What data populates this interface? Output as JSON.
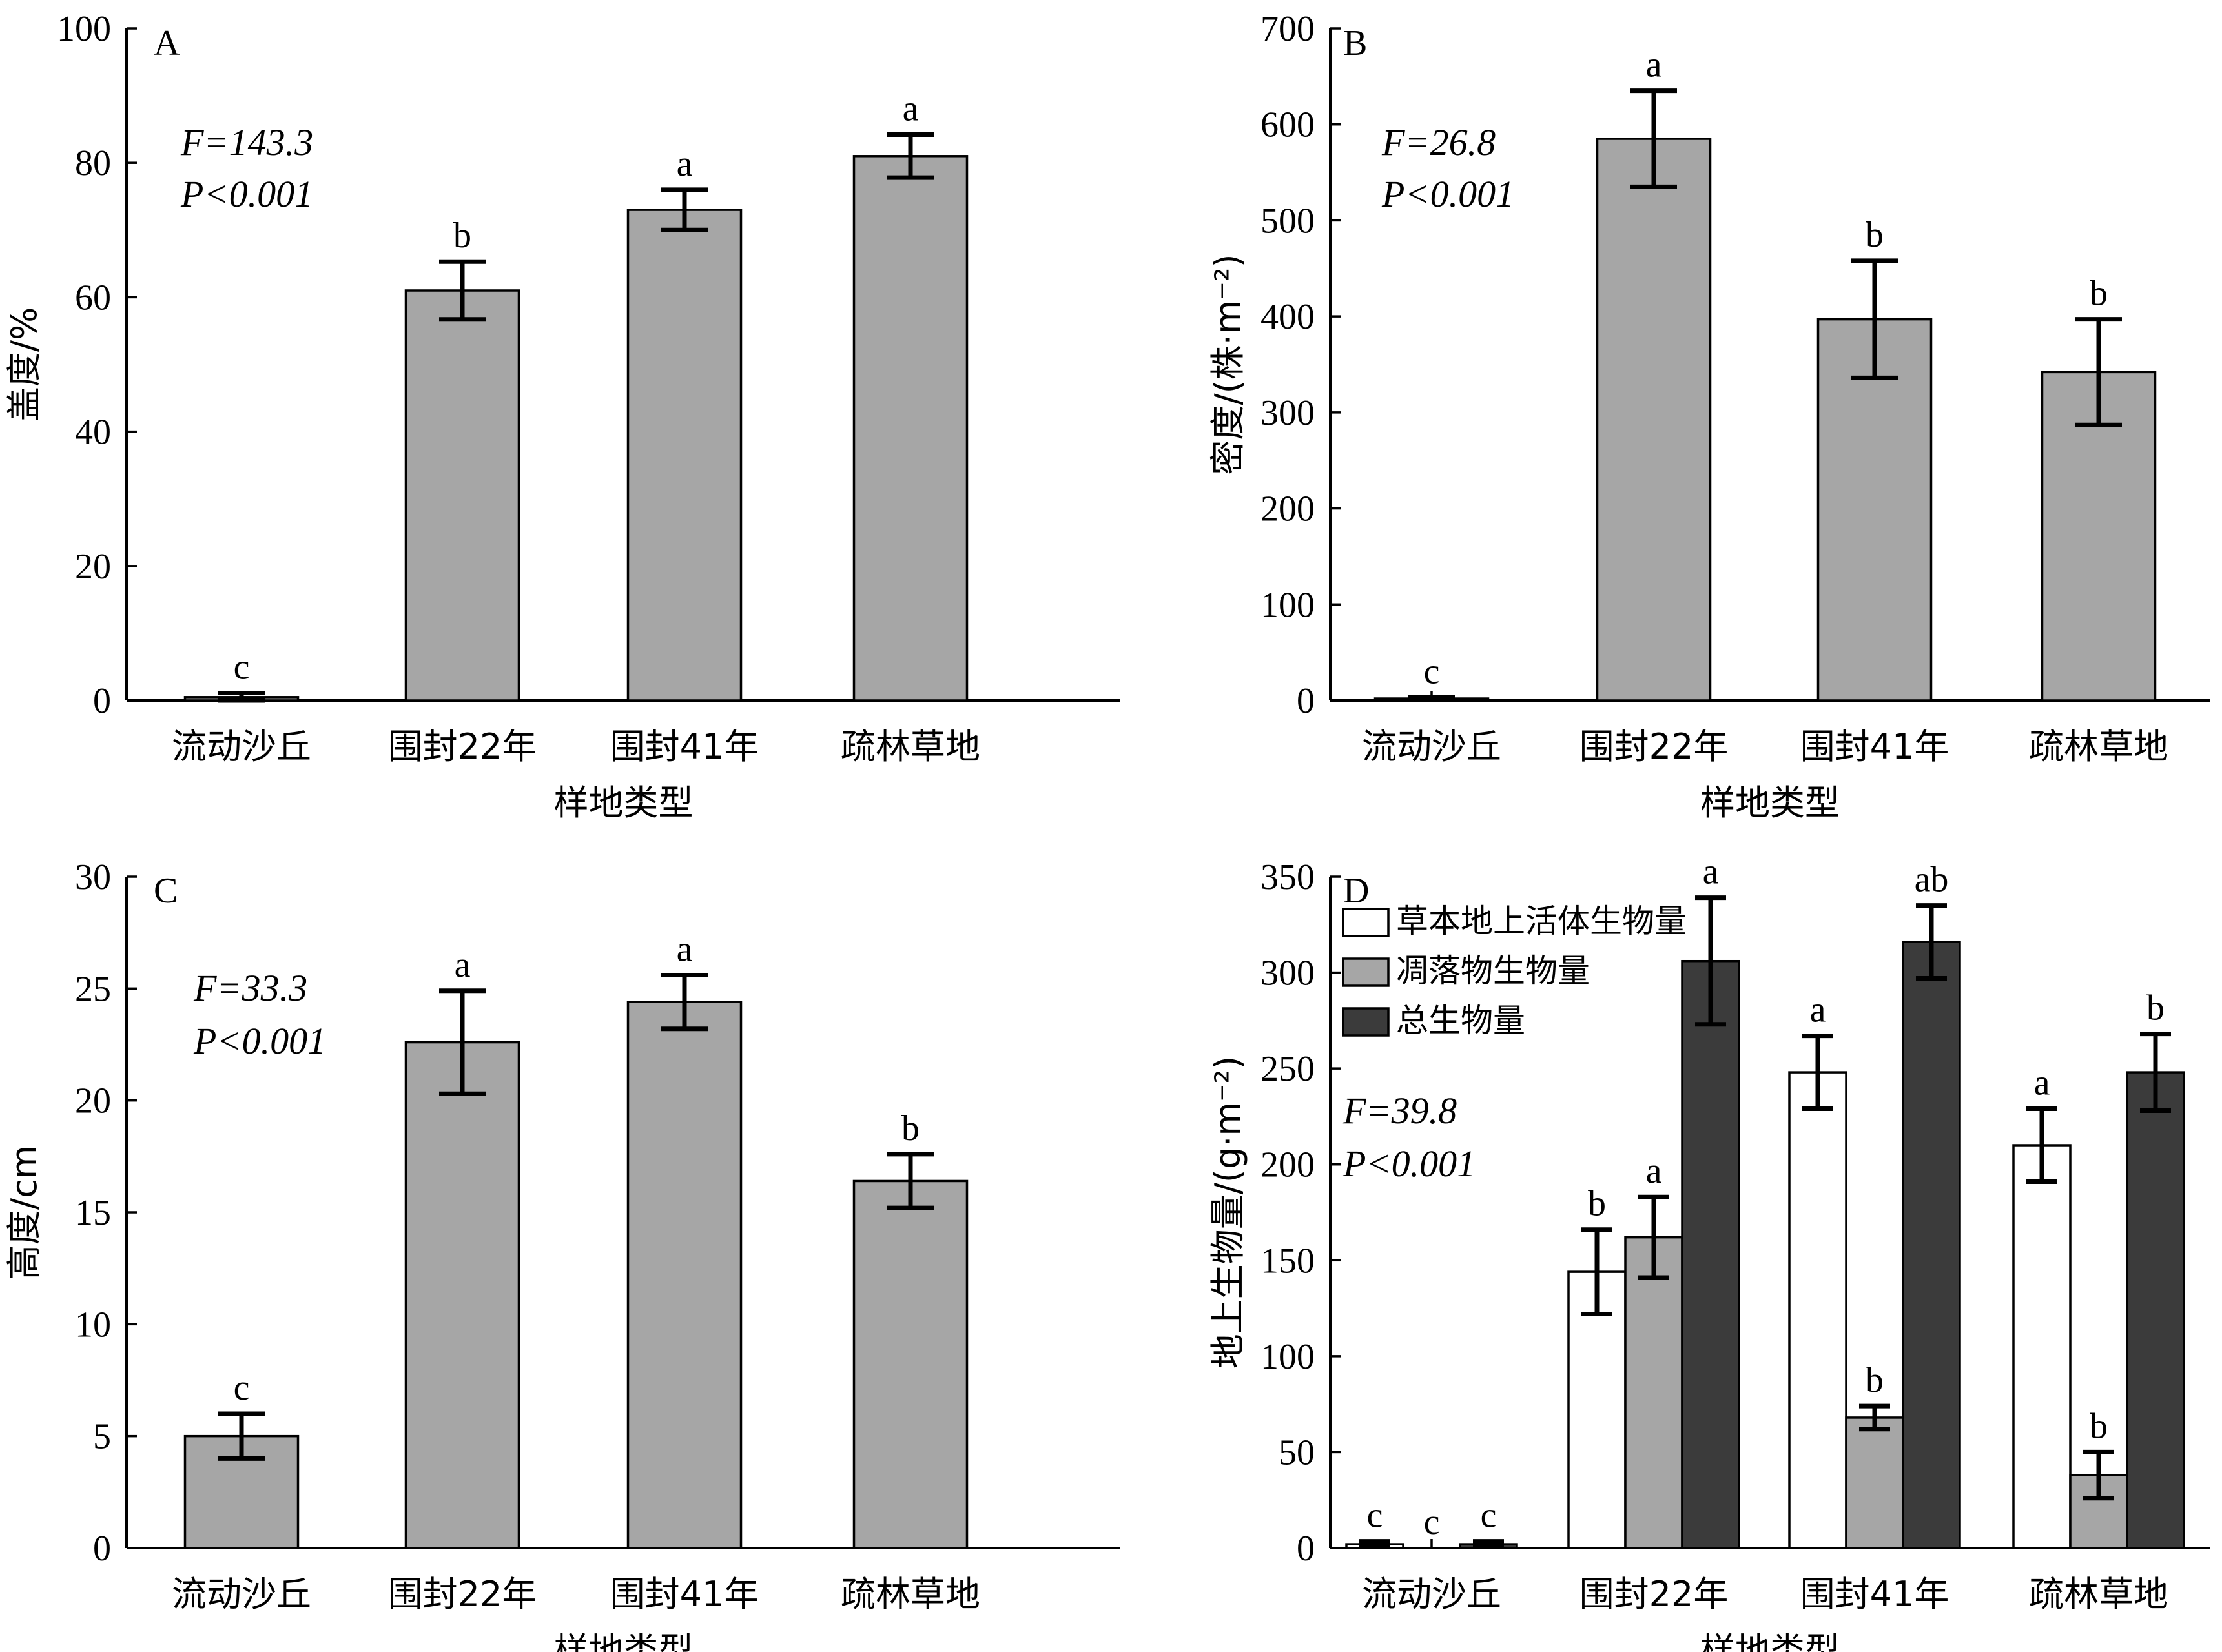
{
  "colors": {
    "white": "#ffffff",
    "gray": "#a6a6a6",
    "dark": "#3b3b3b",
    "axis": "#000000"
  },
  "chart_data": [
    {
      "id": "A",
      "type": "bar",
      "panel_label": "A",
      "xlabel": "样地类型",
      "ylabel": "盖度/%",
      "ylim": [
        0,
        100
      ],
      "yticks": [
        0,
        20,
        40,
        60,
        80,
        100
      ],
      "categories": [
        "流动沙丘",
        "围封22年",
        "围封41年",
        "疏林草地"
      ],
      "stat_F": "F=143.3",
      "stat_P": "P<0.001",
      "series": [
        {
          "color": "#a6a6a6",
          "values": [
            0.5,
            61,
            73,
            81
          ],
          "errors": [
            0.6,
            4.3,
            3,
            3.2
          ],
          "labels": [
            "c",
            "b",
            "a",
            "a"
          ]
        }
      ]
    },
    {
      "id": "B",
      "type": "bar",
      "panel_label": "B",
      "xlabel": "样地类型",
      "ylabel": "密度/(株·m⁻²)",
      "ylim": [
        0,
        700
      ],
      "yticks": [
        0,
        100,
        200,
        300,
        400,
        500,
        600,
        700
      ],
      "categories": [
        "流动沙丘",
        "围封22年",
        "围封41年",
        "疏林草地"
      ],
      "stat_F": "F=26.8",
      "stat_P": "P<0.001",
      "series": [
        {
          "color": "#a6a6a6",
          "values": [
            2,
            585,
            397,
            342
          ],
          "errors": [
            1,
            50,
            61,
            55
          ],
          "labels": [
            "c",
            "a",
            "b",
            "b"
          ]
        }
      ]
    },
    {
      "id": "C",
      "type": "bar",
      "panel_label": "C",
      "xlabel": "样地类型",
      "ylabel": "高度/cm",
      "ylim": [
        0,
        30
      ],
      "yticks": [
        0,
        5,
        10,
        15,
        20,
        25,
        30
      ],
      "categories": [
        "流动沙丘",
        "围封22年",
        "围封41年",
        "疏林草地"
      ],
      "stat_F": "F=33.3",
      "stat_P": "P<0.001",
      "series": [
        {
          "color": "#a6a6a6",
          "values": [
            5,
            22.6,
            24.4,
            16.4
          ],
          "errors": [
            1,
            2.3,
            1.2,
            1.2
          ],
          "labels": [
            "c",
            "a",
            "a",
            "b"
          ]
        }
      ]
    },
    {
      "id": "D",
      "type": "bar",
      "panel_label": "D",
      "xlabel": "样地类型",
      "ylabel": "地上生物量/(g·m⁻²)",
      "ylim": [
        0,
        350
      ],
      "yticks": [
        0,
        50,
        100,
        150,
        200,
        250,
        300,
        350
      ],
      "categories": [
        "流动沙丘",
        "围封22年",
        "围封41年",
        "疏林草地"
      ],
      "stat_F": "F=39.8",
      "stat_P": "P<0.001",
      "series": [
        {
          "name": "草本地上活体生物量",
          "color": "#ffffff",
          "values": [
            2,
            144,
            248,
            210
          ],
          "errors": [
            1.5,
            22,
            19,
            19
          ],
          "labels": [
            "c",
            "b",
            "a",
            "a"
          ]
        },
        {
          "name": "凋落物生物量",
          "color": "#a6a6a6",
          "values": [
            0,
            162,
            68,
            38
          ],
          "errors": [
            0,
            21,
            6,
            12
          ],
          "labels": [
            "c",
            "a",
            "b",
            "b"
          ]
        },
        {
          "name": "总生物量",
          "color": "#3b3b3b",
          "values": [
            2,
            306,
            316,
            248
          ],
          "errors": [
            1.5,
            33,
            19,
            20
          ],
          "labels": [
            "c",
            "a",
            "ab",
            "b"
          ]
        }
      ]
    }
  ]
}
